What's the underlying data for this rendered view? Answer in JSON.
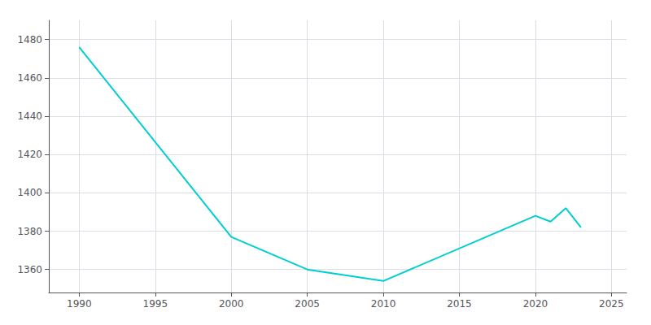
{
  "chart_data": {
    "type": "line",
    "x": [
      1990,
      2000,
      2005,
      2010,
      2020,
      2021,
      2022,
      2023
    ],
    "values": [
      1476,
      1377,
      1360,
      1354,
      1388,
      1385,
      1392,
      1382
    ],
    "color": "#00CED1",
    "xlim": [
      1988,
      2026
    ],
    "ylim": [
      1348,
      1490
    ],
    "xticks": [
      1990,
      1995,
      2000,
      2005,
      2010,
      2015,
      2020,
      2025
    ],
    "yticks": [
      1360,
      1380,
      1400,
      1420,
      1440,
      1460,
      1480
    ],
    "grid": true
  }
}
